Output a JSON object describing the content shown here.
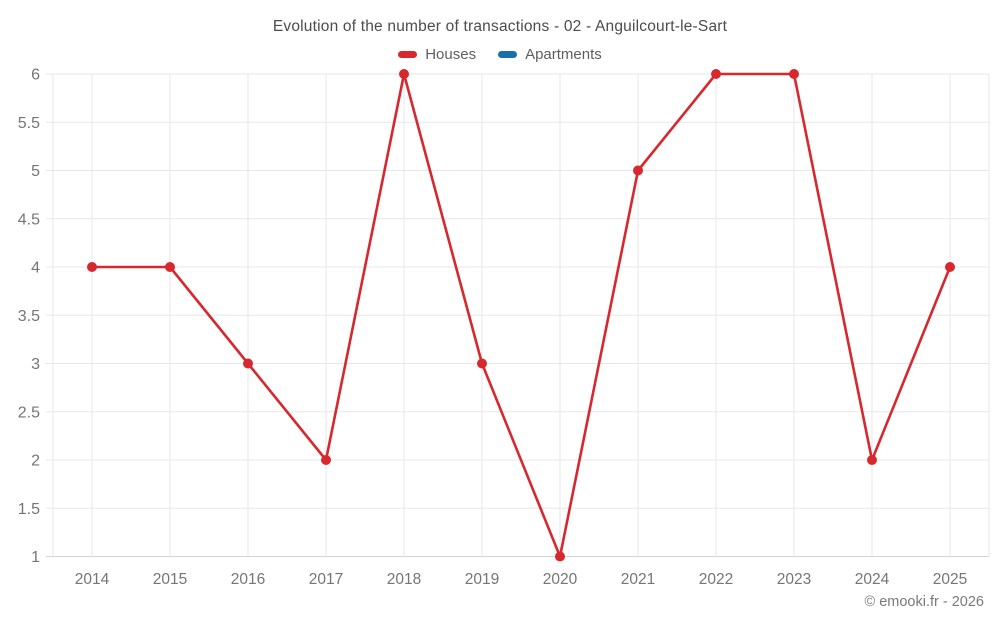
{
  "title": "Evolution of the number of transactions - 02 - Anguilcourt-le-Sart",
  "legend": [
    {
      "label": "Houses",
      "color": "#d7282e"
    },
    {
      "label": "Apartments",
      "color": "#1a6fa8"
    }
  ],
  "footer": "© emooki.fr - 2026",
  "colors": {
    "houses": "#d7282e",
    "apartments": "#1a6fa8",
    "grid": "#e7e7e7",
    "axis": "#d4d4d4",
    "tick_text": "#757575",
    "title_text": "#4c4c4c",
    "legend_text": "#5e5e5e",
    "footer_text": "#7a7a7a"
  },
  "chart_data": {
    "type": "line",
    "title": "Evolution of the number of transactions - 02 - Anguilcourt-le-Sart",
    "categories": [
      "2014",
      "2015",
      "2016",
      "2017",
      "2018",
      "2019",
      "2020",
      "2021",
      "2022",
      "2023",
      "2024",
      "2025"
    ],
    "series": [
      {
        "name": "Houses",
        "color": "#d7282e",
        "values": [
          4,
          4,
          3,
          2,
          6,
          3,
          1,
          5,
          6,
          6,
          2,
          4
        ]
      },
      {
        "name": "Apartments",
        "color": "#1a6fa8",
        "values": []
      }
    ],
    "xlabel": "",
    "ylabel": "",
    "ylim": [
      1,
      6
    ],
    "ytick_step": 0.5,
    "grid": true,
    "legend_position": "top",
    "marker": "circle"
  }
}
